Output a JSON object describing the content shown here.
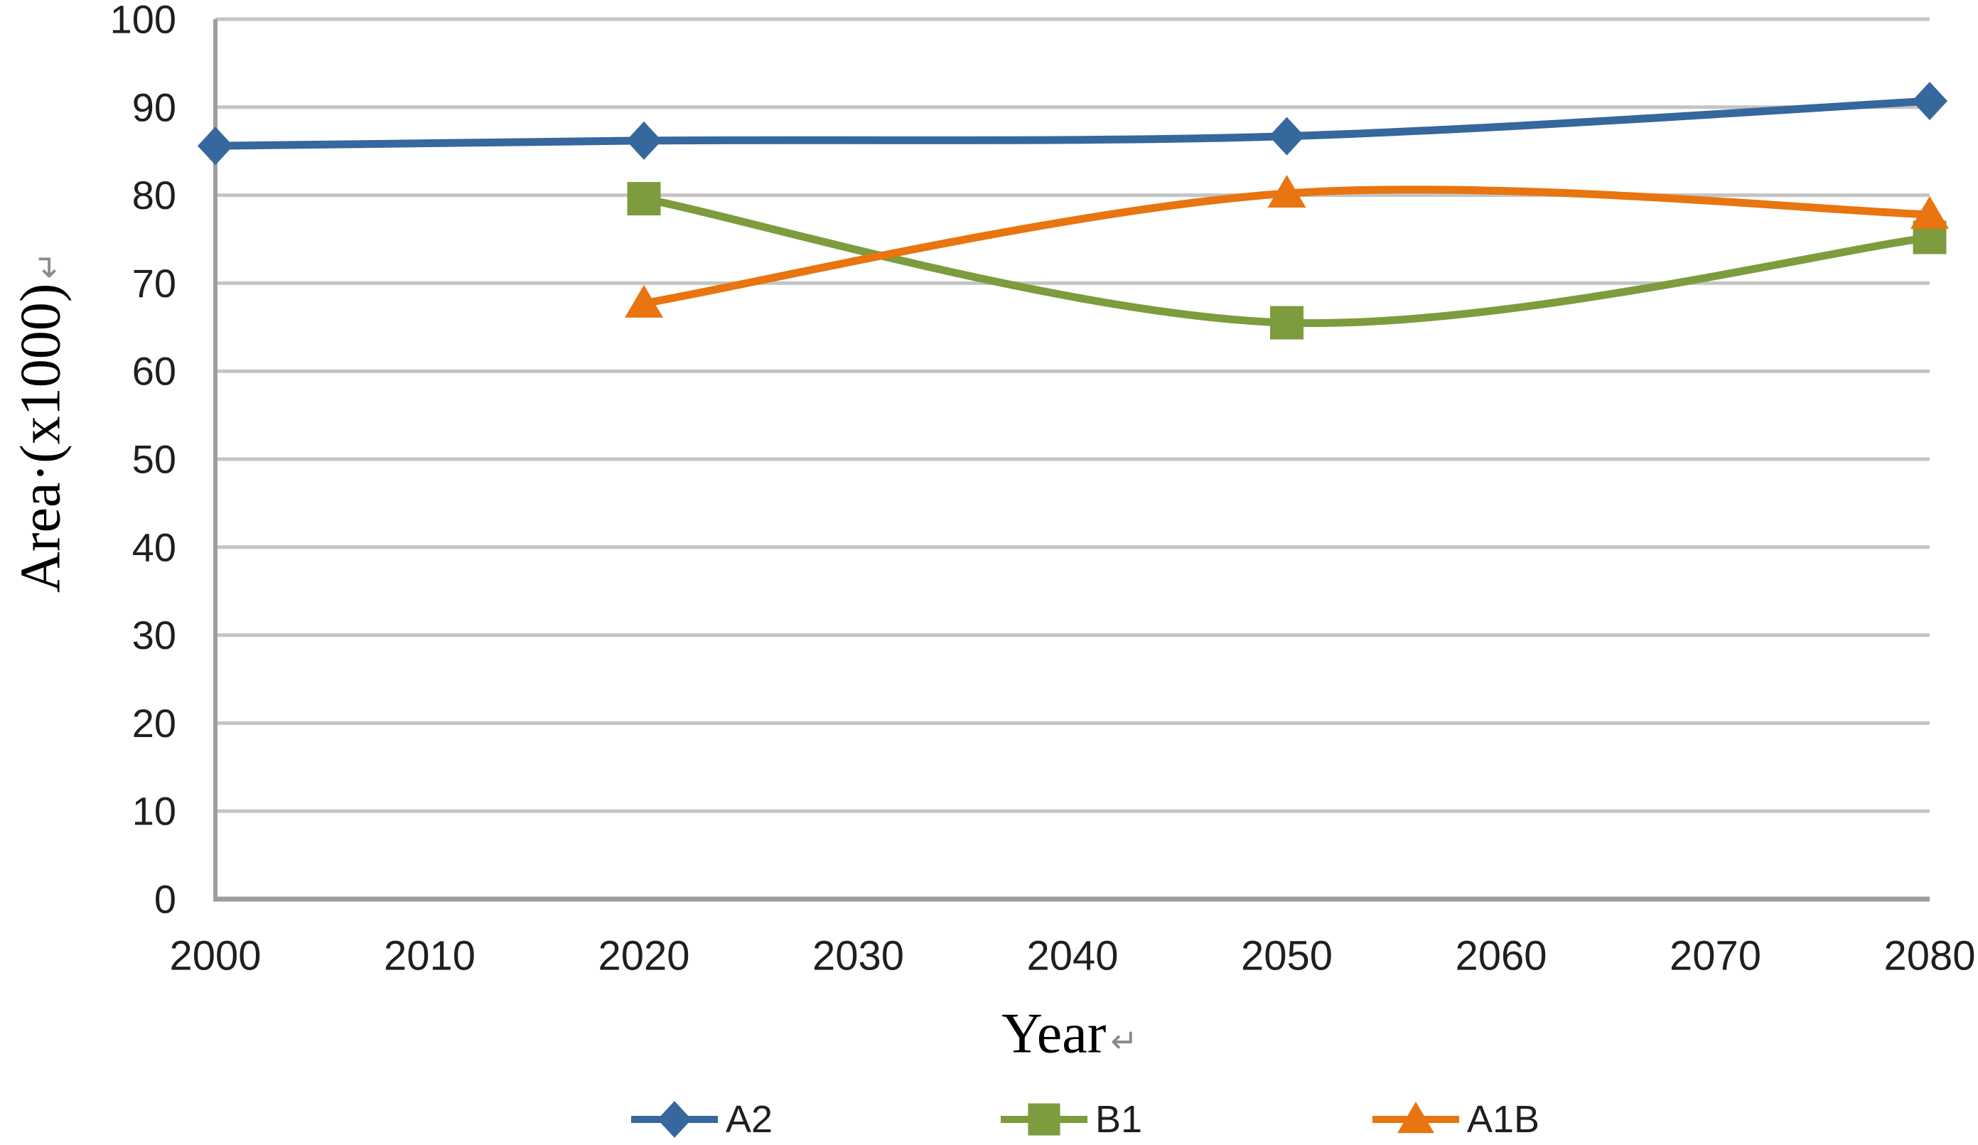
{
  "chart_data": {
    "type": "line",
    "title": "",
    "xlabel": "Year",
    "ylabel": "Area·(x1000)",
    "paragraph_mark": "↵",
    "x_ticks": [
      "2000",
      "2010",
      "2020",
      "2030",
      "2040",
      "2050",
      "2060",
      "2070",
      "2080"
    ],
    "y_ticks": [
      "0",
      "10",
      "20",
      "30",
      "40",
      "50",
      "60",
      "70",
      "80",
      "90",
      "100"
    ],
    "xlim": [
      2000,
      2080
    ],
    "ylim": [
      0,
      100
    ],
    "grid": "horizontal",
    "smoothed_lines": true,
    "legend_position": "bottom",
    "series": [
      {
        "name": "A2",
        "marker": "diamond",
        "color": "#36679D",
        "x": [
          2000,
          2020,
          2050,
          2080
        ],
        "values": [
          85.6,
          86.2,
          86.7,
          90.7
        ]
      },
      {
        "name": "B1",
        "marker": "square",
        "color": "#7D9C3E",
        "x": [
          2020,
          2050,
          2080
        ],
        "values": [
          79.6,
          65.5,
          75.2
        ]
      },
      {
        "name": "A1B",
        "marker": "triangle",
        "color": "#E8750F",
        "x": [
          2020,
          2050,
          2080
        ],
        "values": [
          67.7,
          80.2,
          77.8
        ]
      }
    ],
    "colors": {
      "gridline": "#C4C4C4",
      "axis_line": "#9E9E9E",
      "tick_text": "#1F1F1F",
      "paragraph_mark_color": "#8A8A8A",
      "background": "#FFFFFF"
    }
  }
}
